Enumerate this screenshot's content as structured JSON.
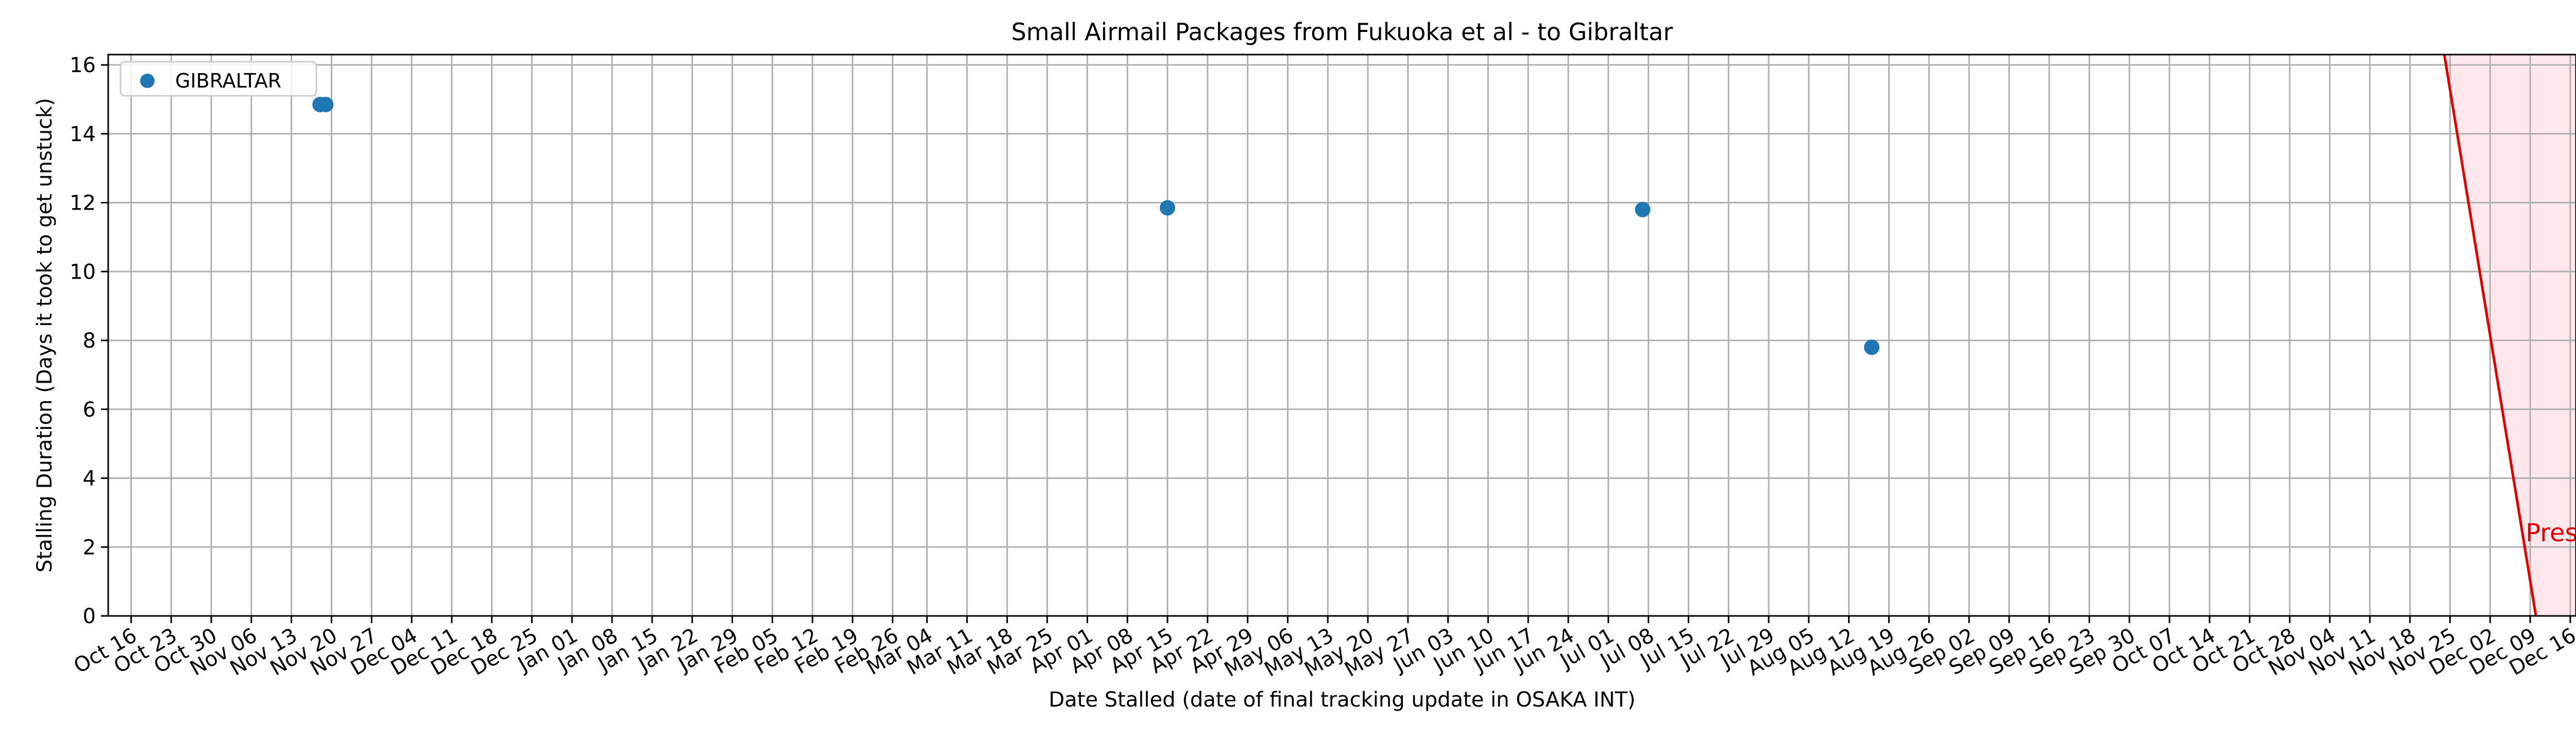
{
  "colors": {
    "series": "#1f77b4",
    "present_line": "#e00000",
    "present_fill": "#ffe4e8",
    "grid": "#b0b0b0"
  },
  "chart_data": {
    "type": "scatter",
    "title": "Small Airmail Packages from Fukuoka et al - to Gibraltar",
    "xlabel": "Date Stalled (date of final tracking update in OSAKA INT)",
    "ylabel": "Stalling Duration (Days it took to get unstuck)",
    "xlim": [
      "2022-10-12",
      "2023-12-17"
    ],
    "ylim": [
      0,
      16.3
    ],
    "grid": true,
    "legend_position": "top-left",
    "x_tick_dates": [
      "2022-10-16",
      "2022-10-23",
      "2022-10-30",
      "2022-11-06",
      "2022-11-13",
      "2022-11-20",
      "2022-11-27",
      "2022-12-04",
      "2022-12-11",
      "2022-12-18",
      "2022-12-25",
      "2023-01-01",
      "2023-01-08",
      "2023-01-15",
      "2023-01-22",
      "2023-01-29",
      "2023-02-05",
      "2023-02-12",
      "2023-02-19",
      "2023-02-26",
      "2023-03-04",
      "2023-03-11",
      "2023-03-18",
      "2023-03-25",
      "2023-04-01",
      "2023-04-08",
      "2023-04-15",
      "2023-04-22",
      "2023-04-29",
      "2023-05-06",
      "2023-05-13",
      "2023-05-20",
      "2023-05-27",
      "2023-06-03",
      "2023-06-10",
      "2023-06-17",
      "2023-06-24",
      "2023-07-01",
      "2023-07-08",
      "2023-07-15",
      "2023-07-22",
      "2023-07-29",
      "2023-08-05",
      "2023-08-12",
      "2023-08-19",
      "2023-08-26",
      "2023-09-02",
      "2023-09-09",
      "2023-09-16",
      "2023-09-23",
      "2023-09-30",
      "2023-10-07",
      "2023-10-14",
      "2023-10-21",
      "2023-10-28",
      "2023-11-04",
      "2023-11-11",
      "2023-11-18",
      "2023-11-25",
      "2023-12-02",
      "2023-12-09",
      "2023-12-16"
    ],
    "x_tick_labels": [
      "Oct 16",
      "Oct 23",
      "Oct 30",
      "Nov 06",
      "Nov 13",
      "Nov 20",
      "Nov 27",
      "Dec 04",
      "Dec 11",
      "Dec 18",
      "Dec 25",
      "Jan 01",
      "Jan 08",
      "Jan 15",
      "Jan 22",
      "Jan 29",
      "Feb 05",
      "Feb 12",
      "Feb 19",
      "Feb 26",
      "Mar 04",
      "Mar 11",
      "Mar 18",
      "Mar 25",
      "Apr 01",
      "Apr 08",
      "Apr 15",
      "Apr 22",
      "Apr 29",
      "May 06",
      "May 13",
      "May 20",
      "May 27",
      "Jun 03",
      "Jun 10",
      "Jun 17",
      "Jun 24",
      "Jul 01",
      "Jul 08",
      "Jul 15",
      "Jul 22",
      "Jul 29",
      "Aug 05",
      "Aug 12",
      "Aug 19",
      "Aug 26",
      "Sep 02",
      "Sep 09",
      "Sep 16",
      "Sep 23",
      "Sep 30",
      "Oct 07",
      "Oct 14",
      "Oct 21",
      "Oct 28",
      "Nov 04",
      "Nov 11",
      "Nov 18",
      "Nov 25",
      "Dec 02",
      "Dec 09",
      "Dec 16"
    ],
    "y_ticks": [
      0,
      2,
      4,
      6,
      8,
      10,
      12,
      14,
      16
    ],
    "y_tick_labels": [
      "0",
      "2",
      "4",
      "6",
      "8",
      "10",
      "12",
      "14",
      "16"
    ],
    "series": [
      {
        "name": "GIBRALTAR",
        "color": "#1f77b4",
        "points": [
          {
            "x": "2022-11-18",
            "y": 14.85
          },
          {
            "x": "2022-11-19",
            "y": 14.85
          },
          {
            "x": "2023-04-15",
            "y": 11.85
          },
          {
            "x": "2023-07-07",
            "y": 11.8
          },
          {
            "x": "2023-08-16",
            "y": 7.8
          }
        ]
      }
    ],
    "annotations": [
      {
        "text": "Present",
        "color": "#e00000",
        "line_from": {
          "x": "2023-11-24",
          "y": 16.3
        },
        "line_to": {
          "x": "2023-12-10",
          "y": 0
        },
        "text_at": {
          "x": "2023-12-10",
          "y": 2.2
        }
      }
    ]
  }
}
